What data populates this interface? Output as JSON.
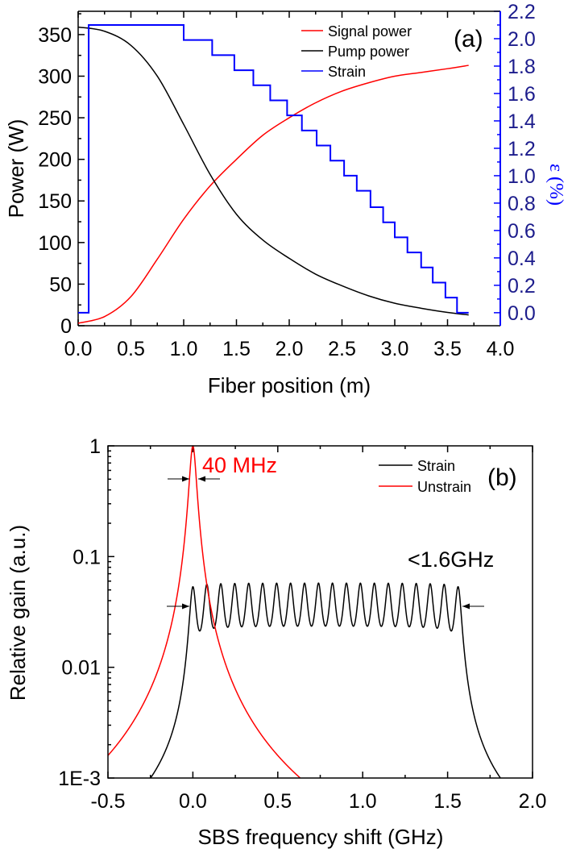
{
  "chart_data": [
    {
      "type": "line",
      "panel_label": "(a)",
      "xlabel": "Fiber position (m)",
      "ylabel": "Power (W)",
      "y2label": "ε (%)",
      "xlim": [
        0,
        4.0
      ],
      "ylim": [
        0,
        378
      ],
      "y2lim": [
        -0.095,
        2.2
      ],
      "xticks": [
        "0.0",
        "0.5",
        "1.0",
        "1.5",
        "2.0",
        "2.5",
        "3.0",
        "3.5",
        "4.0"
      ],
      "yticks": [
        "0",
        "50",
        "100",
        "150",
        "200",
        "250",
        "300",
        "350"
      ],
      "y2ticks": [
        "0.0",
        "0.2",
        "0.4",
        "0.6",
        "0.8",
        "1.0",
        "1.2",
        "1.4",
        "1.6",
        "1.8",
        "2.0",
        "2.2"
      ],
      "legend_position": "top-right",
      "series": [
        {
          "name": "Signal power",
          "color": "#ff0000",
          "axis": "left",
          "x": [
            0,
            0.25,
            0.5,
            0.75,
            1.0,
            1.25,
            1.5,
            1.75,
            2.0,
            2.25,
            2.5,
            2.75,
            3.0,
            3.25,
            3.5,
            3.7
          ],
          "y": [
            3,
            11,
            35,
            80,
            128,
            168,
            200,
            229,
            250,
            268,
            282,
            292,
            300,
            304.5,
            309,
            313
          ]
        },
        {
          "name": "Pump power",
          "color": "#000000",
          "axis": "left",
          "x": [
            0,
            0.25,
            0.5,
            0.75,
            1.0,
            1.25,
            1.5,
            1.75,
            2.0,
            2.25,
            2.5,
            2.75,
            3.0,
            3.25,
            3.5,
            3.7
          ],
          "y": [
            359,
            354,
            337,
            300,
            242,
            182,
            134,
            103,
            81,
            62,
            48,
            36,
            27,
            21,
            16,
            13
          ]
        },
        {
          "name": "Strain",
          "color": "#0000ff",
          "axis": "right",
          "step": true,
          "x_edges": [
            0,
            0.1,
            1.0,
            1.27,
            1.48,
            1.66,
            1.82,
            1.98,
            2.12,
            2.26,
            2.39,
            2.52,
            2.64,
            2.77,
            2.89,
            3.0,
            3.12,
            3.25,
            3.36,
            3.48,
            3.59,
            3.7
          ],
          "levels": [
            0,
            2.1,
            1.99,
            1.88,
            1.77,
            1.66,
            1.55,
            1.44,
            1.33,
            1.22,
            1.11,
            1.0,
            0.89,
            0.77,
            0.66,
            0.55,
            0.44,
            0.33,
            0.22,
            0.11,
            0.0
          ]
        }
      ]
    },
    {
      "type": "line",
      "panel_label": "(b)",
      "xlabel": "SBS frequency shift (GHz)",
      "ylabel": "Relative gain (a.u.)",
      "xlim": [
        -0.5,
        2.0
      ],
      "ylim": [
        0.001,
        1
      ],
      "yscale": "log",
      "xticks": [
        "-0.5",
        "0.0",
        "0.5",
        "1.0",
        "1.5",
        "2.0"
      ],
      "yticks": [
        {
          "value": 1,
          "label": "1"
        },
        {
          "value": 0.1,
          "label": "0.1"
        },
        {
          "value": 0.01,
          "label": "0.01"
        },
        {
          "value": 0.001,
          "label": "1E-3"
        }
      ],
      "legend_position": "top-right",
      "annotations": [
        {
          "text": "40 MHz",
          "color": "#ff0000",
          "x": 0.0,
          "y": 0.6
        },
        {
          "text": "<1.6GHz",
          "color": "#000000",
          "x": 1.3,
          "y": 0.08
        }
      ],
      "series": [
        {
          "name": "Strain",
          "color": "#000000",
          "model": "sum-of-lorentzians",
          "peak_centers": [
            0,
            0.0822,
            0.1644,
            0.2466,
            0.3288,
            0.411,
            0.4932,
            0.5754,
            0.6576,
            0.7398,
            0.822,
            0.9042,
            0.9864,
            1.0686,
            1.1508,
            1.233,
            1.3152,
            1.3974,
            1.4796,
            1.5618
          ],
          "hwhm": 0.02,
          "amplitude": 0.049,
          "peak_value": 0.057,
          "valley_value": 0.023
        },
        {
          "name": "Unstrain",
          "color": "#ff0000",
          "model": "lorentzian",
          "peak_centers": [
            0
          ],
          "hwhm": 0.02,
          "amplitude": 1.0,
          "peak_value": 1.0
        }
      ]
    }
  ]
}
